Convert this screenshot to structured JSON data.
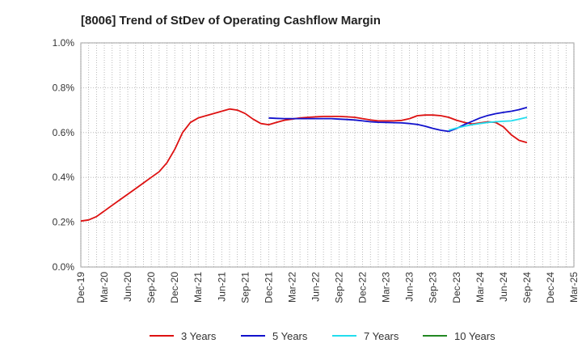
{
  "chart_data": {
    "type": "line",
    "title": "[8006]  Trend of StDev of Operating Cashflow Margin",
    "xlabel": "",
    "ylabel": "",
    "ylim": [
      0,
      1.0
    ],
    "y_ticks": [
      "0.0%",
      "0.2%",
      "0.4%",
      "0.6%",
      "0.8%",
      "1.0%"
    ],
    "x_range": [
      "2019-12",
      "2025-03"
    ],
    "x_ticks": [
      "Dec-19",
      "Mar-20",
      "Jun-20",
      "Sep-20",
      "Dec-20",
      "Mar-21",
      "Jun-21",
      "Sep-21",
      "Dec-21",
      "Mar-22",
      "Jun-22",
      "Sep-22",
      "Dec-22",
      "Mar-23",
      "Jun-23",
      "Sep-23",
      "Dec-23",
      "Mar-24",
      "Jun-24",
      "Sep-24",
      "Dec-24",
      "Mar-25"
    ],
    "grid": true,
    "legend_position": "bottom",
    "series": [
      {
        "name": "3 Years",
        "color": "#dd1111",
        "x": [
          "2019-12",
          "2020-01",
          "2020-02",
          "2020-03",
          "2020-04",
          "2020-05",
          "2020-06",
          "2020-07",
          "2020-08",
          "2020-09",
          "2020-10",
          "2020-11",
          "2020-12",
          "2021-01",
          "2021-02",
          "2021-03",
          "2021-04",
          "2021-05",
          "2021-06",
          "2021-07",
          "2021-08",
          "2021-09",
          "2021-10",
          "2021-11",
          "2021-12",
          "2022-01",
          "2022-02",
          "2022-03",
          "2022-04",
          "2022-05",
          "2022-06",
          "2022-07",
          "2022-08",
          "2022-09",
          "2022-10",
          "2022-11",
          "2022-12",
          "2023-01",
          "2023-02",
          "2023-03",
          "2023-04",
          "2023-05",
          "2023-06",
          "2023-07",
          "2023-08",
          "2023-09",
          "2023-10",
          "2023-11",
          "2023-12",
          "2024-01",
          "2024-02",
          "2024-03",
          "2024-04",
          "2024-05",
          "2024-06",
          "2024-07",
          "2024-08",
          "2024-09"
        ],
        "values": [
          0.205,
          0.21,
          0.225,
          0.25,
          0.275,
          0.3,
          0.325,
          0.35,
          0.375,
          0.4,
          0.425,
          0.465,
          0.525,
          0.6,
          0.645,
          0.665,
          0.675,
          0.685,
          0.695,
          0.705,
          0.7,
          0.685,
          0.66,
          0.64,
          0.635,
          0.645,
          0.655,
          0.66,
          0.665,
          0.668,
          0.67,
          0.672,
          0.672,
          0.672,
          0.67,
          0.668,
          0.662,
          0.656,
          0.652,
          0.652,
          0.652,
          0.654,
          0.662,
          0.675,
          0.678,
          0.678,
          0.675,
          0.668,
          0.655,
          0.645,
          0.638,
          0.643,
          0.648,
          0.645,
          0.625,
          0.59,
          0.565,
          0.555
        ]
      },
      {
        "name": "5 Years",
        "color": "#1111cc",
        "x": [
          "2021-12",
          "2022-01",
          "2022-02",
          "2022-03",
          "2022-04",
          "2022-05",
          "2022-06",
          "2022-07",
          "2022-08",
          "2022-09",
          "2022-10",
          "2022-11",
          "2022-12",
          "2023-01",
          "2023-02",
          "2023-03",
          "2023-04",
          "2023-05",
          "2023-06",
          "2023-07",
          "2023-08",
          "2023-09",
          "2023-10",
          "2023-11",
          "2023-12",
          "2024-01",
          "2024-02",
          "2024-03",
          "2024-04",
          "2024-05",
          "2024-06",
          "2024-07",
          "2024-08",
          "2024-09"
        ],
        "values": [
          0.665,
          0.663,
          0.662,
          0.662,
          0.662,
          0.662,
          0.662,
          0.662,
          0.662,
          0.66,
          0.658,
          0.656,
          0.652,
          0.648,
          0.646,
          0.645,
          0.644,
          0.643,
          0.64,
          0.636,
          0.628,
          0.618,
          0.61,
          0.605,
          0.618,
          0.635,
          0.65,
          0.665,
          0.676,
          0.684,
          0.69,
          0.695,
          0.702,
          0.712
        ]
      },
      {
        "name": "7 Years",
        "color": "#22ddee",
        "x": [
          "2023-11",
          "2023-12",
          "2024-01",
          "2024-02",
          "2024-03",
          "2024-04",
          "2024-05",
          "2024-06",
          "2024-07",
          "2024-08",
          "2024-09"
        ],
        "values": [
          0.61,
          0.62,
          0.628,
          0.635,
          0.64,
          0.645,
          0.648,
          0.65,
          0.652,
          0.66,
          0.668
        ]
      },
      {
        "name": "10 Years",
        "color": "#228822",
        "x": [],
        "values": []
      }
    ]
  }
}
